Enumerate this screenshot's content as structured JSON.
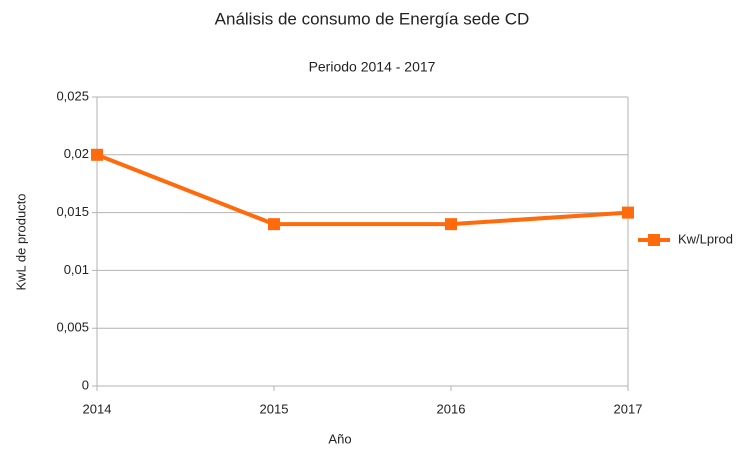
{
  "chart_data": {
    "type": "line",
    "title": "Análisis de consumo de Energía sede CD",
    "subtitle": "Periodo 2014 - 2017",
    "x_label": "Año",
    "y_label": "KwL de producto",
    "x": [
      2014,
      2015,
      2016,
      2017
    ],
    "xlim": [
      2014,
      2017
    ],
    "xticks": [
      2014,
      2015,
      2016,
      2017
    ],
    "series": [
      {
        "name": "Kw/Lprod",
        "color": "#ff6a0d",
        "values": [
          0.02,
          0.014,
          0.014,
          0.015
        ]
      }
    ],
    "ylim": [
      0,
      0.025
    ],
    "yticks": [
      0,
      {
        "value": 0.005,
        "label": "0,005"
      },
      {
        "value": 0.01,
        "label": "0,01"
      },
      {
        "value": 0.015,
        "label": "0,015"
      },
      {
        "value": 0.02,
        "label": "0,02"
      },
      {
        "value": 0.025,
        "label": "0,025"
      }
    ],
    "grid": true,
    "legend": "right"
  }
}
